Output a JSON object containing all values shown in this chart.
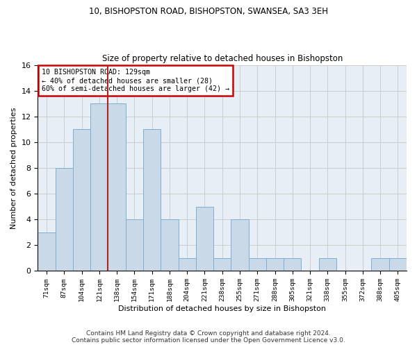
{
  "title1": "10, BISHOPSTON ROAD, BISHOPSTON, SWANSEA, SA3 3EH",
  "title2": "Size of property relative to detached houses in Bishopston",
  "xlabel": "Distribution of detached houses by size in Bishopston",
  "ylabel": "Number of detached properties",
  "categories": [
    "71sqm",
    "87sqm",
    "104sqm",
    "121sqm",
    "138sqm",
    "154sqm",
    "171sqm",
    "188sqm",
    "204sqm",
    "221sqm",
    "238sqm",
    "255sqm",
    "271sqm",
    "288sqm",
    "305sqm",
    "321sqm",
    "338sqm",
    "355sqm",
    "372sqm",
    "388sqm",
    "405sqm"
  ],
  "values": [
    3,
    8,
    11,
    13,
    13,
    4,
    11,
    4,
    1,
    5,
    1,
    4,
    1,
    1,
    1,
    0,
    1,
    0,
    0,
    1,
    1
  ],
  "bar_color": "#c9d9e8",
  "bar_edge_color": "#7bafd4",
  "vline_color": "#b22222",
  "annotation_text": "10 BISHOPSTON ROAD: 129sqm\n← 40% of detached houses are smaller (28)\n60% of semi-detached houses are larger (42) →",
  "annotation_box_color": "white",
  "annotation_box_edge_color": "#cc0000",
  "ylim": [
    0,
    16
  ],
  "yticks": [
    0,
    2,
    4,
    6,
    8,
    10,
    12,
    14,
    16
  ],
  "grid_color": "#cccccc",
  "bg_color": "#e8eef5",
  "footer": "Contains HM Land Registry data © Crown copyright and database right 2024.\nContains public sector information licensed under the Open Government Licence v3.0.",
  "footer_fontsize": 6.5,
  "title_fontsize": 8.5,
  "xlabel_fontsize": 8,
  "ylabel_fontsize": 8
}
